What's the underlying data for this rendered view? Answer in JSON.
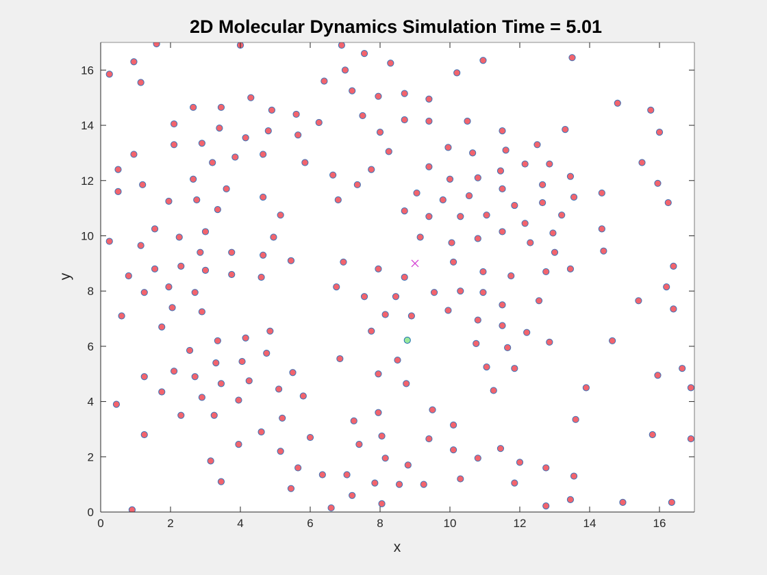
{
  "chart_data": {
    "type": "scatter",
    "title": "2D Molecular Dynamics Simulation Time = 5.01",
    "xlabel": "x",
    "ylabel": "y",
    "xlim": [
      0,
      17
    ],
    "ylim": [
      0,
      17
    ],
    "xticks": [
      "0",
      "2",
      "4",
      "6",
      "8",
      "10",
      "12",
      "14",
      "16"
    ],
    "yticks": [
      "0",
      "2",
      "4",
      "6",
      "8",
      "10",
      "12",
      "14",
      "16"
    ],
    "grid": false,
    "colors": {
      "particle_fill": "#f2646d",
      "particle_edge": "#3a72b8",
      "tracked_fill": "#9be89b",
      "tracked_edge": "#1a6fb0",
      "marker": "#d23ad2"
    },
    "series": [
      {
        "name": "particles",
        "marker": "circle",
        "points": [
          [
            0.25,
            15.85
          ],
          [
            0.95,
            16.3
          ],
          [
            1.6,
            16.95
          ],
          [
            1.15,
            15.55
          ],
          [
            4.0,
            16.9
          ],
          [
            6.9,
            16.9
          ],
          [
            7.55,
            16.6
          ],
          [
            8.3,
            16.25
          ],
          [
            7.0,
            16.0
          ],
          [
            10.2,
            15.9
          ],
          [
            10.95,
            16.35
          ],
          [
            13.5,
            16.45
          ],
          [
            6.4,
            15.6
          ],
          [
            7.2,
            15.25
          ],
          [
            7.95,
            15.05
          ],
          [
            8.7,
            15.15
          ],
          [
            9.4,
            14.95
          ],
          [
            4.3,
            15.0
          ],
          [
            2.65,
            14.65
          ],
          [
            3.45,
            14.65
          ],
          [
            4.9,
            14.55
          ],
          [
            5.6,
            14.4
          ],
          [
            2.1,
            14.05
          ],
          [
            3.4,
            13.9
          ],
          [
            4.15,
            13.55
          ],
          [
            4.8,
            13.8
          ],
          [
            5.65,
            13.65
          ],
          [
            6.25,
            14.1
          ],
          [
            7.5,
            14.35
          ],
          [
            8.7,
            14.2
          ],
          [
            9.4,
            14.15
          ],
          [
            10.5,
            14.15
          ],
          [
            11.5,
            13.8
          ],
          [
            13.3,
            13.85
          ],
          [
            14.8,
            14.8
          ],
          [
            15.75,
            14.55
          ],
          [
            16.0,
            13.75
          ],
          [
            2.1,
            13.3
          ],
          [
            2.9,
            13.35
          ],
          [
            3.2,
            12.65
          ],
          [
            3.85,
            12.85
          ],
          [
            4.65,
            12.95
          ],
          [
            5.85,
            12.65
          ],
          [
            8.0,
            13.75
          ],
          [
            8.25,
            13.05
          ],
          [
            9.95,
            13.2
          ],
          [
            10.65,
            13.0
          ],
          [
            11.6,
            13.1
          ],
          [
            12.5,
            13.3
          ],
          [
            0.95,
            12.95
          ],
          [
            0.5,
            12.4
          ],
          [
            1.2,
            11.85
          ],
          [
            0.5,
            11.6
          ],
          [
            2.65,
            12.05
          ],
          [
            3.6,
            11.7
          ],
          [
            6.65,
            12.2
          ],
          [
            7.35,
            11.85
          ],
          [
            7.75,
            12.4
          ],
          [
            9.4,
            12.5
          ],
          [
            10.0,
            12.05
          ],
          [
            10.8,
            12.1
          ],
          [
            11.45,
            12.35
          ],
          [
            12.15,
            12.6
          ],
          [
            12.85,
            12.6
          ],
          [
            13.45,
            12.15
          ],
          [
            15.5,
            12.65
          ],
          [
            15.95,
            11.9
          ],
          [
            16.25,
            11.2
          ],
          [
            1.95,
            11.25
          ],
          [
            2.75,
            11.3
          ],
          [
            3.35,
            10.95
          ],
          [
            4.65,
            11.4
          ],
          [
            5.15,
            10.75
          ],
          [
            6.8,
            11.3
          ],
          [
            8.7,
            10.9
          ],
          [
            9.05,
            11.55
          ],
          [
            9.8,
            11.3
          ],
          [
            10.55,
            11.45
          ],
          [
            11.5,
            11.7
          ],
          [
            12.65,
            11.85
          ],
          [
            13.55,
            11.4
          ],
          [
            14.35,
            11.55
          ],
          [
            9.4,
            10.7
          ],
          [
            10.3,
            10.7
          ],
          [
            11.05,
            10.75
          ],
          [
            11.85,
            11.1
          ],
          [
            12.65,
            11.2
          ],
          [
            13.2,
            10.75
          ],
          [
            1.55,
            10.25
          ],
          [
            1.15,
            9.65
          ],
          [
            2.25,
            9.95
          ],
          [
            3.0,
            10.15
          ],
          [
            4.95,
            9.95
          ],
          [
            0.25,
            9.8
          ],
          [
            9.15,
            9.95
          ],
          [
            10.05,
            9.75
          ],
          [
            10.8,
            9.9
          ],
          [
            11.5,
            10.15
          ],
          [
            12.15,
            10.45
          ],
          [
            12.3,
            9.75
          ],
          [
            12.95,
            10.1
          ],
          [
            14.35,
            10.25
          ],
          [
            2.85,
            9.4
          ],
          [
            3.75,
            9.4
          ],
          [
            4.65,
            9.3
          ],
          [
            5.45,
            9.1
          ],
          [
            6.95,
            9.05
          ],
          [
            13.0,
            9.4
          ],
          [
            14.4,
            9.45
          ],
          [
            16.4,
            8.9
          ],
          [
            0.8,
            8.55
          ],
          [
            1.55,
            8.8
          ],
          [
            2.3,
            8.9
          ],
          [
            3.0,
            8.75
          ],
          [
            3.75,
            8.6
          ],
          [
            4.6,
            8.5
          ],
          [
            7.95,
            8.8
          ],
          [
            8.7,
            8.5
          ],
          [
            10.1,
            9.05
          ],
          [
            10.95,
            8.7
          ],
          [
            11.75,
            8.55
          ],
          [
            12.75,
            8.7
          ],
          [
            13.45,
            8.8
          ],
          [
            1.95,
            8.15
          ],
          [
            1.25,
            7.95
          ],
          [
            2.7,
            7.95
          ],
          [
            6.75,
            8.15
          ],
          [
            7.55,
            7.8
          ],
          [
            8.45,
            7.8
          ],
          [
            9.55,
            7.95
          ],
          [
            10.3,
            8.0
          ],
          [
            10.95,
            7.95
          ],
          [
            11.5,
            7.5
          ],
          [
            12.55,
            7.65
          ],
          [
            15.4,
            7.65
          ],
          [
            16.2,
            8.15
          ],
          [
            16.4,
            7.35
          ],
          [
            0.6,
            7.1
          ],
          [
            2.05,
            7.4
          ],
          [
            2.9,
            7.25
          ],
          [
            8.15,
            7.15
          ],
          [
            8.9,
            7.1
          ],
          [
            9.95,
            7.3
          ],
          [
            1.75,
            6.7
          ],
          [
            7.75,
            6.55
          ],
          [
            10.8,
            6.95
          ],
          [
            11.5,
            6.75
          ],
          [
            12.2,
            6.5
          ],
          [
            4.85,
            6.55
          ],
          [
            4.15,
            6.3
          ],
          [
            3.35,
            6.2
          ],
          [
            2.55,
            5.85
          ],
          [
            4.75,
            5.75
          ],
          [
            10.75,
            6.1
          ],
          [
            11.65,
            5.95
          ],
          [
            12.85,
            6.15
          ],
          [
            14.65,
            6.2
          ],
          [
            6.85,
            5.55
          ],
          [
            8.5,
            5.5
          ],
          [
            3.3,
            5.4
          ],
          [
            4.05,
            5.45
          ],
          [
            2.1,
            5.1
          ],
          [
            1.25,
            4.9
          ],
          [
            2.7,
            4.9
          ],
          [
            3.45,
            4.65
          ],
          [
            4.25,
            4.75
          ],
          [
            5.5,
            5.05
          ],
          [
            7.95,
            5.0
          ],
          [
            8.75,
            4.65
          ],
          [
            11.05,
            5.25
          ],
          [
            11.85,
            5.2
          ],
          [
            15.95,
            4.95
          ],
          [
            16.65,
            5.2
          ],
          [
            1.75,
            4.35
          ],
          [
            2.9,
            4.15
          ],
          [
            3.95,
            4.05
          ],
          [
            5.1,
            4.45
          ],
          [
            5.8,
            4.2
          ],
          [
            11.25,
            4.4
          ],
          [
            13.9,
            4.5
          ],
          [
            16.9,
            4.5
          ],
          [
            0.45,
            3.9
          ],
          [
            2.3,
            3.5
          ],
          [
            3.25,
            3.5
          ],
          [
            5.2,
            3.4
          ],
          [
            7.25,
            3.3
          ],
          [
            7.95,
            3.6
          ],
          [
            9.5,
            3.7
          ],
          [
            13.6,
            3.35
          ],
          [
            4.6,
            2.9
          ],
          [
            1.25,
            2.8
          ],
          [
            6.0,
            2.7
          ],
          [
            8.05,
            2.75
          ],
          [
            9.4,
            2.65
          ],
          [
            10.1,
            3.15
          ],
          [
            15.8,
            2.8
          ],
          [
            16.9,
            2.65
          ],
          [
            3.95,
            2.45
          ],
          [
            5.15,
            2.2
          ],
          [
            7.4,
            2.45
          ],
          [
            10.1,
            2.25
          ],
          [
            11.45,
            2.3
          ],
          [
            8.15,
            1.95
          ],
          [
            10.8,
            1.95
          ],
          [
            12.0,
            1.8
          ],
          [
            3.15,
            1.85
          ],
          [
            5.65,
            1.6
          ],
          [
            6.35,
            1.35
          ],
          [
            7.05,
            1.35
          ],
          [
            8.8,
            1.7
          ],
          [
            12.75,
            1.6
          ],
          [
            13.55,
            1.3
          ],
          [
            3.45,
            1.1
          ],
          [
            5.45,
            0.85
          ],
          [
            7.85,
            1.05
          ],
          [
            8.55,
            1.0
          ],
          [
            9.25,
            1.0
          ],
          [
            10.3,
            1.2
          ],
          [
            11.85,
            1.05
          ],
          [
            7.2,
            0.6
          ],
          [
            8.05,
            0.3
          ],
          [
            13.45,
            0.45
          ],
          [
            14.95,
            0.35
          ],
          [
            16.35,
            0.35
          ],
          [
            0.9,
            0.08
          ],
          [
            6.6,
            0.15
          ],
          [
            12.75,
            0.22
          ]
        ]
      },
      {
        "name": "tracked particle",
        "marker": "circle",
        "points": [
          [
            8.78,
            6.22
          ]
        ]
      },
      {
        "name": "center",
        "marker": "x",
        "points": [
          [
            9.0,
            9.0
          ]
        ]
      }
    ]
  }
}
